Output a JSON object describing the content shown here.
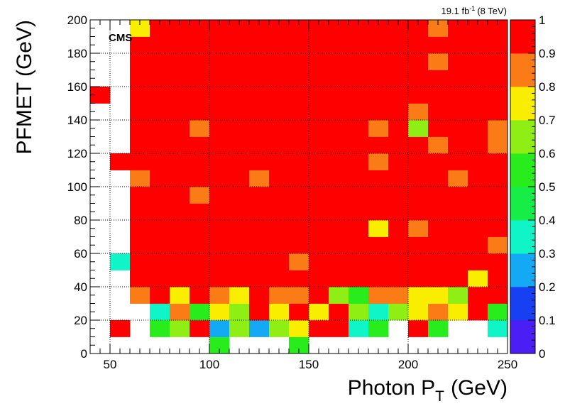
{
  "chart_data": {
    "type": "heatmap",
    "experiment_label": "CMS",
    "luminosity_label": "19.1 fb",
    "luminosity_exponent": "-1",
    "energy_label": "(8 TeV)",
    "xlabel": "Photon P",
    "xlabel_subscript": "T",
    "xlabel_unit": "(GeV)",
    "ylabel": "PFMET (GeV)",
    "xlim": [
      40,
      250
    ],
    "ylim": [
      0,
      200
    ],
    "x_bin_width": 10,
    "y_bin_width": 10,
    "x_ticks": [
      50,
      100,
      150,
      200,
      250
    ],
    "y_ticks": [
      0,
      20,
      40,
      60,
      80,
      100,
      120,
      140,
      160,
      180,
      200
    ],
    "grid": true,
    "colorbar": {
      "range": [
        0,
        1
      ],
      "ticks": [
        0,
        0.1,
        0.2,
        0.3,
        0.4,
        0.5,
        0.6,
        0.7,
        0.8,
        0.9,
        1
      ],
      "tick_labels": [
        "0",
        "0.1",
        "0.2",
        "0.3",
        "0.4",
        "0.5",
        "0.6",
        "0.7",
        "0.8",
        "0.9",
        "1"
      ],
      "colors": [
        "#4a1ef5",
        "#1740f2",
        "#14a9f4",
        "#10f5c8",
        "#16ed46",
        "#28ec1c",
        "#8fef15",
        "#faee00",
        "#fb7b16",
        "#ff0000"
      ]
    },
    "z_note": "Rows listed from y=0-10 bin upward; columns from x=40-50 bin to x=240-250 bin; null = empty bin",
    "z": [
      [
        null,
        null,
        null,
        null,
        null,
        null,
        0.55,
        null,
        null,
        null,
        0.55,
        null,
        null,
        null,
        null,
        null,
        null,
        null,
        null,
        null,
        null
      ],
      [
        null,
        0.95,
        null,
        0.55,
        0.65,
        0.95,
        0.25,
        0.65,
        0.25,
        0.65,
        0.75,
        0.95,
        0.95,
        0.35,
        0.55,
        null,
        0.95,
        0.55,
        null,
        null,
        0.35
      ],
      [
        null,
        null,
        null,
        0.35,
        0.85,
        0.55,
        0.75,
        0.65,
        0.95,
        0.75,
        0.95,
        0.75,
        0.95,
        0.65,
        0.35,
        0.65,
        0.75,
        0.85,
        0.75,
        0.95,
        0.55
      ],
      [
        null,
        null,
        0.85,
        0.95,
        0.75,
        0.95,
        0.85,
        0.75,
        0.95,
        0.85,
        0.85,
        0.95,
        0.65,
        0.55,
        0.85,
        0.85,
        0.75,
        0.75,
        0.65,
        0.95,
        0.95
      ],
      [
        null,
        null,
        0.95,
        0.95,
        0.95,
        0.95,
        0.95,
        0.95,
        0.95,
        0.95,
        0.95,
        0.95,
        0.95,
        0.95,
        0.95,
        0.95,
        0.95,
        0.95,
        0.95,
        0.75,
        0.95
      ],
      [
        null,
        0.35,
        0.95,
        0.95,
        0.95,
        0.95,
        0.95,
        0.95,
        0.95,
        0.95,
        0.85,
        0.95,
        0.95,
        0.95,
        0.95,
        0.95,
        0.95,
        0.95,
        0.95,
        0.95,
        0.95
      ],
      [
        null,
        null,
        0.95,
        0.95,
        0.95,
        0.95,
        0.95,
        0.95,
        0.95,
        0.95,
        0.95,
        0.95,
        0.95,
        0.95,
        0.95,
        0.95,
        0.95,
        0.95,
        0.95,
        0.95,
        0.85
      ],
      [
        null,
        null,
        0.95,
        0.95,
        0.95,
        0.95,
        0.95,
        0.95,
        0.95,
        0.95,
        0.95,
        0.95,
        0.95,
        0.95,
        0.75,
        0.95,
        0.85,
        0.95,
        0.95,
        0.95,
        0.95
      ],
      [
        null,
        null,
        0.95,
        0.95,
        0.95,
        0.95,
        0.95,
        0.95,
        0.95,
        0.95,
        0.95,
        0.95,
        0.95,
        0.95,
        0.95,
        0.95,
        0.95,
        0.95,
        0.95,
        0.95,
        0.95
      ],
      [
        null,
        null,
        0.95,
        0.95,
        0.95,
        0.85,
        0.95,
        0.95,
        0.95,
        0.95,
        0.95,
        0.95,
        0.95,
        0.95,
        0.95,
        0.95,
        0.95,
        0.95,
        0.95,
        0.95,
        0.95
      ],
      [
        null,
        null,
        0.85,
        0.95,
        0.95,
        0.95,
        0.95,
        0.95,
        0.85,
        0.95,
        0.95,
        0.95,
        0.95,
        0.95,
        0.95,
        0.95,
        0.95,
        0.95,
        0.85,
        0.95,
        0.95
      ],
      [
        null,
        0.95,
        0.95,
        0.95,
        0.95,
        0.95,
        0.95,
        0.95,
        0.95,
        0.95,
        0.95,
        0.95,
        0.95,
        0.95,
        0.85,
        0.95,
        0.95,
        0.95,
        0.95,
        0.95,
        0.95
      ],
      [
        null,
        null,
        0.95,
        0.95,
        0.95,
        0.95,
        0.95,
        0.95,
        0.95,
        0.95,
        0.95,
        0.95,
        0.95,
        0.95,
        0.95,
        0.95,
        0.95,
        0.85,
        0.95,
        0.95,
        0.85
      ],
      [
        null,
        null,
        0.95,
        0.95,
        0.95,
        0.85,
        0.95,
        0.95,
        0.95,
        0.95,
        0.95,
        0.95,
        0.95,
        0.95,
        0.85,
        0.95,
        0.65,
        0.95,
        0.95,
        0.95,
        0.85
      ],
      [
        null,
        null,
        0.95,
        0.95,
        0.95,
        0.95,
        0.95,
        0.95,
        0.95,
        0.95,
        0.95,
        0.95,
        0.95,
        0.95,
        0.95,
        0.95,
        0.85,
        0.95,
        0.95,
        0.95,
        0.95
      ],
      [
        0.95,
        null,
        0.95,
        0.95,
        0.95,
        0.95,
        0.95,
        0.95,
        0.95,
        0.95,
        0.95,
        0.95,
        0.95,
        0.95,
        0.95,
        0.95,
        0.95,
        0.95,
        0.95,
        0.95,
        0.95
      ],
      [
        null,
        null,
        0.95,
        0.95,
        0.95,
        0.95,
        0.95,
        0.95,
        0.95,
        0.95,
        0.95,
        0.95,
        0.95,
        0.95,
        0.95,
        0.95,
        0.95,
        0.95,
        0.95,
        0.95,
        0.95
      ],
      [
        null,
        null,
        0.95,
        0.95,
        0.95,
        0.95,
        0.95,
        0.95,
        0.95,
        0.95,
        0.95,
        0.95,
        0.95,
        0.95,
        0.95,
        0.95,
        0.95,
        0.85,
        0.95,
        0.95,
        0.95
      ],
      [
        null,
        null,
        0.95,
        0.95,
        0.95,
        0.95,
        0.95,
        0.95,
        0.95,
        0.95,
        0.95,
        0.95,
        0.95,
        0.95,
        0.95,
        0.95,
        0.95,
        0.95,
        0.95,
        0.95,
        0.95
      ],
      [
        null,
        null,
        0.75,
        0.95,
        0.95,
        0.95,
        0.95,
        0.95,
        0.95,
        0.95,
        0.95,
        0.95,
        0.95,
        0.95,
        0.95,
        0.95,
        0.95,
        0.85,
        0.95,
        0.95,
        0.95
      ]
    ]
  }
}
